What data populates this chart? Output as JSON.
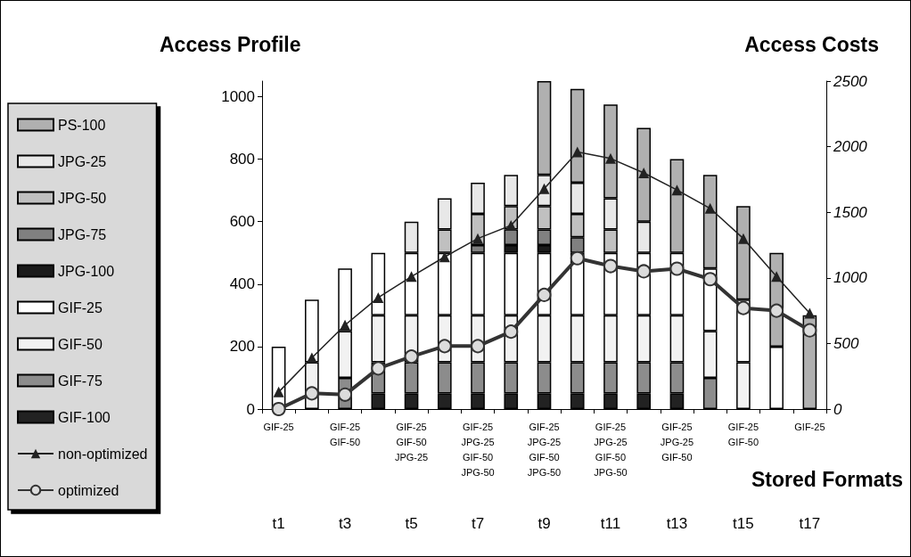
{
  "chart_data": {
    "type": "bar",
    "stacked": true,
    "ylabel": "Access Profile",
    "y2label": "Access Costs",
    "categories": [
      "t1",
      null,
      "t3",
      null,
      "t5",
      null,
      "t7",
      null,
      "t9",
      null,
      "t11",
      null,
      "t13",
      null,
      "t15",
      null,
      "t17"
    ],
    "ylim": [
      0,
      1050
    ],
    "yticks": [
      0,
      200,
      400,
      600,
      800,
      1000
    ],
    "y2lim": [
      0,
      2500
    ],
    "y2ticks": [
      0,
      500,
      1000,
      1500,
      2000,
      2500
    ],
    "grid": false,
    "legend": "left",
    "series": [
      {
        "name": "GIF-100",
        "color": "#222222",
        "values": [
          null,
          null,
          null,
          50,
          50,
          50,
          50,
          50,
          50,
          50,
          50,
          50,
          50,
          null,
          null,
          null,
          null
        ]
      },
      {
        "name": "GIF-75",
        "color": "#8c8c8c",
        "values": [
          null,
          null,
          100,
          100,
          100,
          100,
          100,
          100,
          100,
          100,
          100,
          100,
          100,
          100,
          null,
          null,
          null
        ]
      },
      {
        "name": "GIF-50",
        "color": "#f2f2f2",
        "values": [
          null,
          150,
          150,
          150,
          150,
          150,
          150,
          150,
          150,
          150,
          150,
          150,
          150,
          150,
          150,
          null,
          null
        ]
      },
      {
        "name": "GIF-25",
        "color": "#ffffff",
        "values": [
          200,
          200,
          200,
          200,
          200,
          200,
          200,
          200,
          200,
          200,
          200,
          200,
          200,
          200,
          200,
          200,
          null
        ]
      },
      {
        "name": "JPG-100",
        "color": "#1a1a1a",
        "values": [
          null,
          null,
          null,
          null,
          null,
          null,
          null,
          25,
          25,
          null,
          null,
          null,
          null,
          null,
          null,
          null,
          null
        ]
      },
      {
        "name": "JPG-75",
        "color": "#808080",
        "values": [
          null,
          null,
          null,
          null,
          null,
          null,
          25,
          50,
          50,
          50,
          null,
          null,
          null,
          null,
          null,
          null,
          null
        ]
      },
      {
        "name": "JPG-50",
        "color": "#c0c0c0",
        "values": [
          null,
          null,
          null,
          null,
          null,
          75,
          100,
          75,
          75,
          75,
          75,
          null,
          null,
          null,
          null,
          null,
          null
        ]
      },
      {
        "name": "JPG-25",
        "color": "#e8e8e8",
        "values": [
          null,
          null,
          null,
          null,
          100,
          100,
          100,
          100,
          100,
          100,
          100,
          100,
          null,
          null,
          null,
          null,
          null
        ]
      },
      {
        "name": "PS-100",
        "color": "#b0b0b0",
        "values": [
          null,
          null,
          null,
          null,
          null,
          null,
          null,
          null,
          300,
          300,
          300,
          300,
          300,
          300,
          300,
          300,
          300
        ]
      },
      {
        "name": "non-optimized",
        "type": "line",
        "axis": "y2",
        "marker": "triangle",
        "color": "#222222",
        "values": [
          130,
          390,
          640,
          850,
          1010,
          1160,
          1300,
          1400,
          1680,
          1960,
          1910,
          1800,
          1670,
          1530,
          1300,
          1010,
          730
        ]
      },
      {
        "name": "optimized",
        "type": "line",
        "axis": "y2",
        "marker": "circle",
        "color": "#333333",
        "values": [
          0,
          120,
          110,
          310,
          400,
          480,
          480,
          590,
          870,
          1150,
          1090,
          1050,
          1070,
          990,
          770,
          750,
          600
        ]
      }
    ],
    "annotations": [
      "GIF-25",
      "GIF-25\nGIF-50",
      "GIF-25\nGIF-50\nJPG-25",
      "GIF-25\nJPG-25\nGIF-50\nJPG-50",
      "GIF-25\nJPG-25\nGIF-50\nJPG-50",
      "GIF-25\nJPG-25\nGIF-50\nJPG-50",
      "GIF-25\nJPG-25\nGIF-50",
      "GIF-25\nGIF-50",
      "GIF-25",
      "Stored Formats"
    ]
  }
}
